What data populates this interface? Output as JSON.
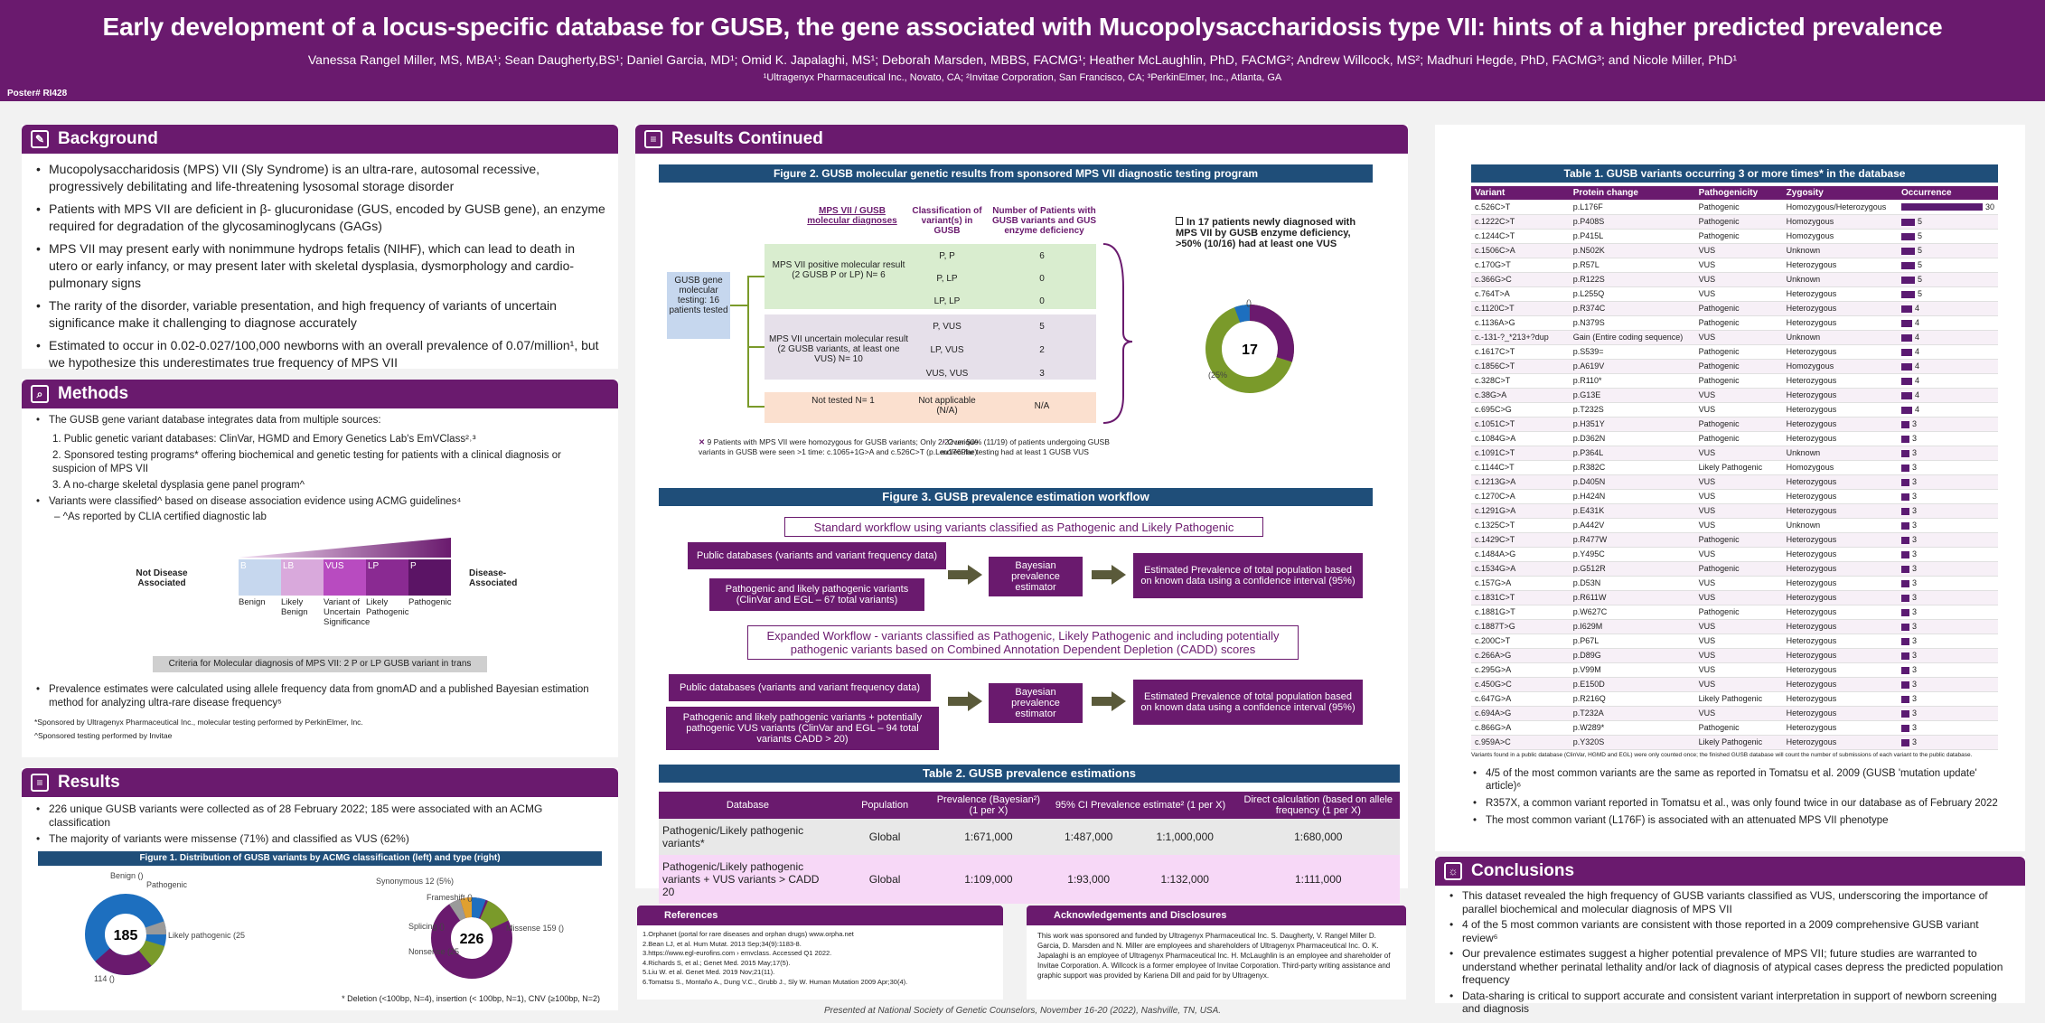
{
  "header": {
    "title": "Early development of a locus-specific database for GUSB, the gene associated with Mucopolysaccharidosis type VII: hints of a higher predicted prevalence",
    "authors": "Vanessa Rangel Miller, MS, MBA¹; Sean Daugherty,BS¹; Daniel Garcia, MD¹; Omid K. Japalaghi, MS¹; Deborah Marsden, MBBS, FACMG¹; Heather McLaughlin, PhD, FACMG²; Andrew Willcock, MS²; Madhuri Hegde, PhD, FACMG³; and Nicole Miller, PhD¹",
    "affiliations": "¹Ultragenyx Pharmaceutical Inc., Novato, CA; ²Invitae Corporation, San Francisco, CA; ³PerkinElmer, Inc., Atlanta, GA",
    "poster_no": "Poster# RI428"
  },
  "background": {
    "title": "Background",
    "items": [
      "Mucopolysaccharidosis (MPS) VII (Sly Syndrome) is an ultra-rare, autosomal recessive, progressively debilitating and life-threatening lysosomal storage disorder",
      "Patients with MPS VII are deficient in β- glucuronidase (GUS, encoded by GUSB gene), an enzyme required for degradation of the glycosaminoglycans (GAGs)",
      "MPS VII may present early with nonimmune hydrops fetalis (NIHF), which can lead to death in utero or early infancy, or may present later with skeletal dysplasia, dysmorphology and cardio-pulmonary signs",
      "The rarity of the disorder, variable presentation, and high frequency of variants of uncertain significance make it challenging to diagnose accurately",
      "Estimated to occur in 0.02-0.027/100,000 newborns with an overall prevalence of 0.07/million¹, but we hypothesize this underestimates true frequency of MPS VII"
    ]
  },
  "methods": {
    "title": "Methods",
    "intro": "The GUSB gene variant database integrates data from multiple sources:",
    "sources": [
      "1.   Public genetic variant databases: ClinVar, HGMD and Emory Genetics Lab's EmVClass²˒³",
      "2.   Sponsored testing programs* offering biochemical and genetic testing for patients with a clinical diagnosis or suspicion of MPS VII",
      "3.   A no-charge skeletal dysplasia gene panel program^"
    ],
    "classified": "Variants were classified^ based on disease association evidence using ACMG guidelines⁴",
    "clia": "–   ^As reported by CLIA certified diagnostic lab",
    "acmg_left": "Not Disease Associated",
    "acmg_right": "Disease-Associated",
    "acmg_codes": [
      "B",
      "LB",
      "VUS",
      "LP",
      "P"
    ],
    "acmg_labels": [
      "Benign",
      "Likely Benign",
      "Variant of Uncertain Significance",
      "Likely Pathogenic",
      "Pathogenic"
    ],
    "criteria": "Criteria for Molecular diagnosis of MPS VII: 2 P or LP GUSB variant in trans",
    "prevalence": "Prevalence estimates were calculated using allele frequency data from gnomAD and a published Bayesian estimation method for analyzing ultra-rare disease frequency⁵",
    "fn1": "*Sponsored by Ultragenyx Pharmaceutical Inc., molecular testing performed by PerkinElmer, Inc.",
    "fn2": "^Sponsored testing performed by Invitae"
  },
  "results": {
    "title": "Results",
    "item1": "226 unique GUSB variants were collected as of 28 February 2022; 185 were associated with an ACMG classification",
    "item2": "The majority of variants were missense (71%) and classified as VUS (62%)",
    "fig1_title": "Figure 1. Distribution of GUSB variants by  ACMG classification (left)  and type (right)",
    "fig1_left_center": "185",
    "fig1_right_center": "226",
    "fig1_left_labels": [
      "Benign ()",
      "Pathogenic",
      "Likely pathogenic (25",
      "114 ()"
    ],
    "fig1_right_labels": [
      "Synonymous 12 (5%)",
      "Missense 159 ()",
      "Splicing ()",
      "Nonsense (25",
      "Frameshift ()"
    ],
    "fig1_note": "* Deletion (<100bp, N=4), insertion (< 100bp, N=1), CNV (≥100bp, N=2)"
  },
  "results_cont": {
    "title": "Results Continued",
    "fig2_title": "Figure 2. GUSB molecular genetic results from sponsored MPS VII diagnostic testing  program",
    "col1": "MPS VII / GUSB molecular diagnoses",
    "col2": "Classification of variant(s) in GUSB",
    "col3": "Number of Patients with GUSB variants and GUS enzyme deficiency",
    "source_box": "GUSB gene molecular testing: 16 patients tested",
    "group1": "MPS VII positive molecular result (2 GUSB P or LP) N= 6",
    "group2": "MPS VII uncertain molecular result (2 GUSB variants, at least one VUS) N= 10",
    "group3": "Not tested N= 1",
    "rows": [
      {
        "cls": "P, P",
        "n": "6"
      },
      {
        "cls": "P, LP",
        "n": "0"
      },
      {
        "cls": "LP, LP",
        "n": "0"
      },
      {
        "cls": "P, VUS",
        "n": "5"
      },
      {
        "cls": "LP, VUS",
        "n": "2"
      },
      {
        "cls": "VUS, VUS",
        "n": "3"
      },
      {
        "cls": "Not applicable (N/A)",
        "n": "N/A"
      }
    ],
    "callout": "In 17 patients newly diagnosed with MPS VII by GUSB enzyme deficiency, >50% (10/16) had at least one VUS",
    "donut_center": "17",
    "donut_label": "(25%",
    "donut_small": "()",
    "note_left": "9 Patients with MPS VII  were homozygous for GUSB variants; Only 2/22 unique variants in GUSB were seen >1 time: c.1065+1G>A and c.526C>T (p.Leu176Phe)",
    "note_right": "Over 50% (11/19) of patients undergoing GUSB molecular testing had at least 1 GUSB VUS",
    "fig3_title": "Figure 3. GUSB prevalence estimation workflow",
    "wf1_title": "Standard workflow using variants classified as Pathogenic and Likely Pathogenic",
    "wf1_db": "Public databases (variants and variant frequency data)",
    "wf1_var": "Pathogenic and likely pathogenic variants (ClinVar and EGL – 67 total variants)",
    "wf_bayes": "Bayesian prevalence estimator",
    "wf_result": "Estimated Prevalence of total population based on known data using a confidence interval (95%)",
    "wf2_title": "Expanded Workflow - variants classified as Pathogenic, Likely Pathogenic and including potentially pathogenic variants based on Combined Annotation Dependent Depletion (CADD) scores",
    "wf2_db": "Public databases (variants and variant frequency data)",
    "wf2_var": "Pathogenic and likely pathogenic variants + potentially pathogenic VUS variants (ClinVar and EGL – 94 total variants CADD > 20)",
    "t2_title": "Table 2. GUSB prevalence estimations",
    "t2_headers": [
      "Database",
      "Population",
      "Prevalence (Bayesian²) (1 per X)",
      "95% CI Prevalence estimate² (1 per X)",
      "",
      "Direct calculation (based on allele frequency (1 per X)"
    ],
    "t2_rows": [
      [
        "Pathogenic/Likely pathogenic variants*",
        "Global",
        "1:671,000",
        "1:487,000",
        "1:1,000,000",
        "1:680,000"
      ],
      [
        "Pathogenic/Likely pathogenic variants + VUS variants > CADD 20",
        "Global",
        "1:109,000",
        "1:93,000",
        "1:132,000",
        "1:111,000"
      ]
    ]
  },
  "references": {
    "title": "References",
    "items": [
      "1.Orphanet (portal for rare diseases and orphan drugs) www.orpha.net",
      "2.Bean LJ, et al. Hum Mutat. 2013 Sep;34(9):1183-8.",
      "3.https://www.egl-eurofins.com › emvclass.  Accessed Q1 2022.",
      "4.Richards S, et al.; Genet Med. 2015 May;17(5).",
      "5.Liu W. et al. Genet Med. 2019 Nov;21(11).",
      "6.Tomatsu S., Montaño A., Dung V.C., Grubb J., Sly W. Human Mutation 2009 Apr;30(4)."
    ]
  },
  "ack": {
    "title": "Acknowledgements and Disclosures",
    "text": "This work was sponsored and funded by Ultragenyx Pharmaceutical Inc. S. Daugherty, V. Rangel Miller D. Garcia, D. Marsden and N. Miller are employees and shareholders of Ultragenyx Pharmaceutical Inc. O. K. Japalaghi is an employee of Ultragenyx Pharmaceutical Inc. H. McLaughlin is an employee and shareholder of Invitae Corporation. A. Willcock is a former employee of Invitae Corporation. Third-party writing assistance and graphic support was provided by Kariena Dill and paid for by Ultragenyx."
  },
  "table1": {
    "title": "Table 1. GUSB variants occurring 3 or more times* in the database",
    "headers": [
      "Variant",
      "Protein change",
      "Pathogenicity",
      "Zygosity",
      "Occurrence"
    ],
    "rows": [
      [
        "c.526C>T",
        "p.L176F",
        "Pathogenic",
        "Homozygous/Heterozygous",
        "30"
      ],
      [
        "c.1222C>T",
        "p.P408S",
        "Pathogenic",
        "Homozygous",
        "5"
      ],
      [
        "c.1244C>T",
        "p.P415L",
        "Pathogenic",
        "Homozygous",
        "5"
      ],
      [
        "c.1506C>A",
        "p.N502K",
        "VUS",
        "Unknown",
        "5"
      ],
      [
        "c.170G>T",
        "p.R57L",
        "VUS",
        "Heterozygous",
        "5"
      ],
      [
        "c.366G>C",
        "p.R122S",
        "VUS",
        "Unknown",
        "5"
      ],
      [
        "c.764T>A",
        "p.L255Q",
        "VUS",
        "Heterozygous",
        "5"
      ],
      [
        "c.1120C>T",
        "p.R374C",
        "Pathogenic",
        "Heterozygous",
        "4"
      ],
      [
        "c.1136A>G",
        "p.N379S",
        "Pathogenic",
        "Heterozygous",
        "4"
      ],
      [
        "c.-131-?_*213+?dup",
        "Gain (Entire coding sequence)",
        "VUS",
        "Unknown",
        "4"
      ],
      [
        "c.1617C>T",
        "p.S539=",
        "Pathogenic",
        "Heterozygous",
        "4"
      ],
      [
        "c.1856C>T",
        "p.A619V",
        "Pathogenic",
        "Homozygous",
        "4"
      ],
      [
        "c.328C>T",
        "p.R110*",
        "Pathogenic",
        "Heterozygous",
        "4"
      ],
      [
        "c.38G>A",
        "p.G13E",
        "VUS",
        "Heterozygous",
        "4"
      ],
      [
        "c.695C>G",
        "p.T232S",
        "VUS",
        "Heterozygous",
        "4"
      ],
      [
        "c.1051C>T",
        "p.H351Y",
        "Pathogenic",
        "Heterozygous",
        "3"
      ],
      [
        "c.1084G>A",
        "p.D362N",
        "Pathogenic",
        "Heterozygous",
        "3"
      ],
      [
        "c.1091C>T",
        "p.P364L",
        "VUS",
        "Unknown",
        "3"
      ],
      [
        "c.1144C>T",
        "p.R382C",
        "Likely Pathogenic",
        "Homozygous",
        "3"
      ],
      [
        "c.1213G>A",
        "p.D405N",
        "VUS",
        "Heterozygous",
        "3"
      ],
      [
        "c.1270C>A",
        "p.H424N",
        "VUS",
        "Heterozygous",
        "3"
      ],
      [
        "c.1291G>A",
        "p.E431K",
        "VUS",
        "Heterozygous",
        "3"
      ],
      [
        "c.1325C>T",
        "p.A442V",
        "VUS",
        "Unknown",
        "3"
      ],
      [
        "c.1429C>T",
        "p.R477W",
        "Pathogenic",
        "Heterozygous",
        "3"
      ],
      [
        "c.1484A>G",
        "p.Y495C",
        "VUS",
        "Heterozygous",
        "3"
      ],
      [
        "c.1534G>A",
        "p.G512R",
        "Pathogenic",
        "Heterozygous",
        "3"
      ],
      [
        "c.157G>A",
        "p.D53N",
        "VUS",
        "Heterozygous",
        "3"
      ],
      [
        "c.1831C>T",
        "p.R611W",
        "VUS",
        "Heterozygous",
        "3"
      ],
      [
        "c.1881G>T",
        "p.W627C",
        "Pathogenic",
        "Heterozygous",
        "3"
      ],
      [
        "c.1887T>G",
        "p.I629M",
        "VUS",
        "Heterozygous",
        "3"
      ],
      [
        "c.200C>T",
        "p.P67L",
        "VUS",
        "Heterozygous",
        "3"
      ],
      [
        "c.266A>G",
        "p.D89G",
        "VUS",
        "Heterozygous",
        "3"
      ],
      [
        "c.295G>A",
        "p.V99M",
        "VUS",
        "Heterozygous",
        "3"
      ],
      [
        "c.450G>C",
        "p.E150D",
        "VUS",
        "Heterozygous",
        "3"
      ],
      [
        "c.647G>A",
        "p.R216Q",
        "Likely Pathogenic",
        "Heterozygous",
        "3"
      ],
      [
        "c.694A>G",
        "p.T232A",
        "VUS",
        "Heterozygous",
        "3"
      ],
      [
        "c.866G>A",
        "p.W289*",
        "Pathogenic",
        "Heterozygous",
        "3"
      ],
      [
        "c.959A>C",
        "p.Y320S",
        "Likely Pathogenic",
        "Heterozygous",
        "3"
      ]
    ],
    "footnote": "Variants found in a public database (ClinVar, HGMD and EGL) were only counted once; the finished GUSB database will count the number of submissions of each variant to the public database.",
    "bullets": [
      "4/5 of the most common variants are the same as reported in Tomatsu et al. 2009 (GUSB 'mutation update' article)⁶",
      "R357X, a common variant reported in Tomatsu et al., was only found twice in our database as of February 2022",
      "The most common variant (L176F) is associated with an attenuated MPS VII phenotype"
    ]
  },
  "conclusions": {
    "title": "Conclusions",
    "items": [
      "This dataset revealed the high frequency of GUSB variants classified as VUS, underscoring the importance of parallel biochemical and molecular diagnosis of MPS VII",
      "4 of the 5 most common variants are consistent with those reported in a 2009 comprehensive GUSB variant review⁶",
      "Our prevalence estimates suggest a higher potential prevalence of MPS VII; future studies are warranted to understand whether perinatal lethality and/or lack of diagnosis of atypical cases depress the predicted population frequency",
      "Data-sharing is critical to support accurate and consistent variant interpretation in support of newborn screening and diagnosis"
    ]
  },
  "footer": "Presented at National Society of Genetic Counselors, November 16-20 (2022), Nashville, TN, USA."
}
